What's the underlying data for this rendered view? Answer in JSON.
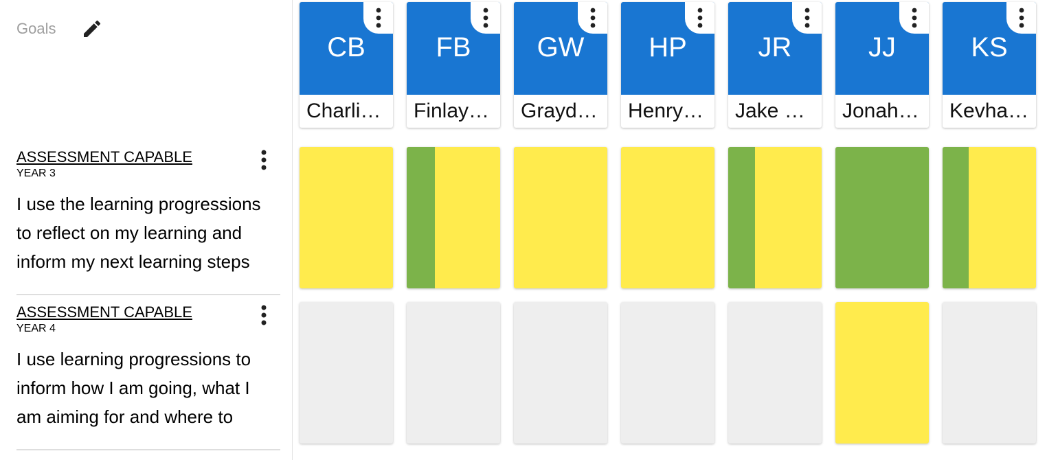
{
  "sidebar": {
    "goals_label": "Goals",
    "goals": [
      {
        "title": "ASSESSMENT CAPABLE",
        "year": "YEAR 3",
        "description_lines": [
          "I use the learning progressions",
          "to reflect on my learning and",
          "inform my next learning steps"
        ]
      },
      {
        "title": "ASSESSMENT CAPABLE",
        "year": "YEAR 4",
        "description_lines": [
          "I use learning progressions to",
          "inform how I am going, what I",
          "am aiming for and where to"
        ]
      }
    ]
  },
  "colors": {
    "avatar_blue": "#1976d2",
    "yellow": "#ffeb4d",
    "green": "#7cb34a",
    "empty_grey": "#eeeeee"
  },
  "students": [
    {
      "initials": "CB",
      "name": "Charli…"
    },
    {
      "initials": "FB",
      "name": "Finlay …"
    },
    {
      "initials": "GW",
      "name": "Grayd…"
    },
    {
      "initials": "HP",
      "name": "Henry …"
    },
    {
      "initials": "JR",
      "name": "Jake …"
    },
    {
      "initials": "JJ",
      "name": "Jonah…"
    },
    {
      "initials": "KS",
      "name": "Kevha…"
    }
  ],
  "progress": [
    [
      {
        "status": "yellow",
        "green_fraction": 0
      },
      {
        "status": "split",
        "green_fraction": 0.3
      },
      {
        "status": "yellow",
        "green_fraction": 0
      },
      {
        "status": "yellow",
        "green_fraction": 0
      },
      {
        "status": "split",
        "green_fraction": 0.29
      },
      {
        "status": "green",
        "green_fraction": 1
      },
      {
        "status": "split",
        "green_fraction": 0.28
      }
    ],
    [
      {
        "status": "empty",
        "green_fraction": 0
      },
      {
        "status": "empty",
        "green_fraction": 0
      },
      {
        "status": "empty",
        "green_fraction": 0
      },
      {
        "status": "empty",
        "green_fraction": 0
      },
      {
        "status": "empty",
        "green_fraction": 0
      },
      {
        "status": "yellow",
        "green_fraction": 0
      },
      {
        "status": "empty",
        "green_fraction": 0
      }
    ]
  ]
}
